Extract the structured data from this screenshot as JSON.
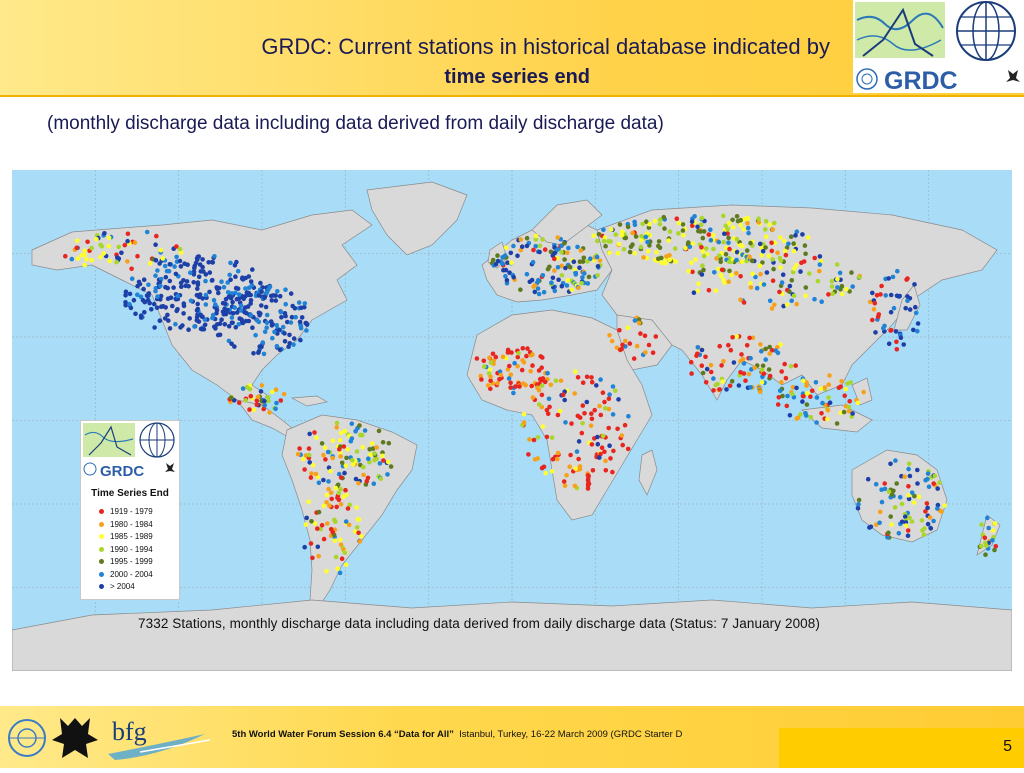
{
  "header": {
    "title_line1": "GRDC: Current stations in historical database indicated by",
    "title_line2": "time series end",
    "logo_text": "GRDC"
  },
  "subtitle": "(monthly discharge data including data derived from daily discharge data)",
  "map": {
    "caption": "7332 Stations, monthly discharge data including data derived from daily discharge data (Status: 7 January 2008)",
    "legend": {
      "logo_text": "GRDC",
      "title": "Time Series End",
      "items": [
        {
          "label": "1919 - 1979",
          "color": "#e8261f"
        },
        {
          "label": "1980 - 1984",
          "color": "#f7a11a"
        },
        {
          "label": "1985 - 1989",
          "color": "#ffff2e"
        },
        {
          "label": "1990 - 1994",
          "color": "#a8d62a"
        },
        {
          "label": "1995 - 1999",
          "color": "#5e7a1e"
        },
        {
          "label": "2000 - 2004",
          "color": "#1f83d6"
        },
        {
          "label": "> 2004",
          "color": "#1d3fa8"
        }
      ]
    },
    "colors": {
      "ocean": "#a9dcf6",
      "land": "#d9d9d9",
      "border": "#8a8a8a",
      "grid": "#9fb8c8"
    }
  },
  "footer": {
    "session": "5th World Water Forum Session 6.4 “Data for All”",
    "location": "Istanbul, Turkey, 16-22 March 2009  (GRDC Starter D",
    "bfg_logo": "bfg",
    "page_number": "5"
  }
}
